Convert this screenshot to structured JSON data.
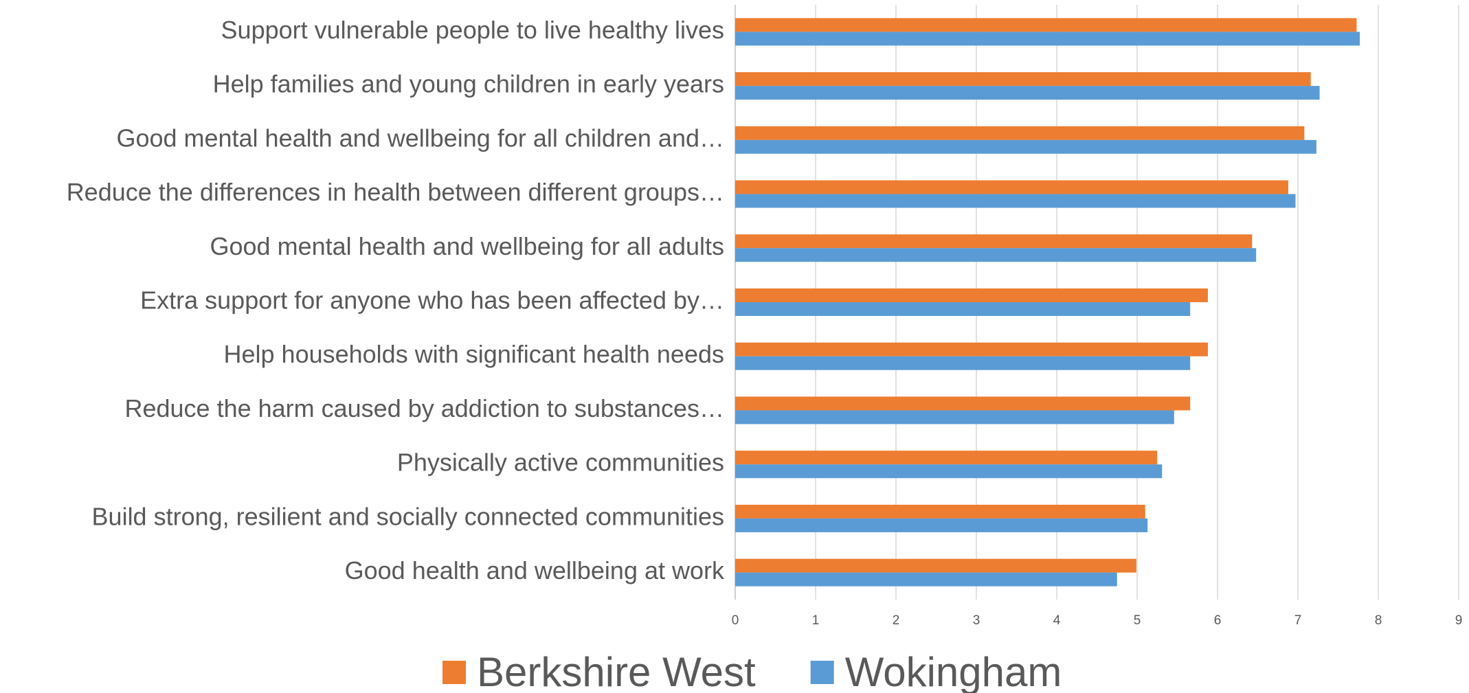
{
  "chart_data": {
    "type": "bar",
    "orientation": "horizontal",
    "categories": [
      "Support vulnerable people to live healthy lives",
      "Help families and young children in early years",
      "Good mental health and wellbeing for all children and…",
      "Reduce the differences in health between different groups…",
      "Good mental health and wellbeing for all adults",
      "Extra support for anyone who has been affected by…",
      "Help households with significant health needs",
      "Reduce the harm caused by addiction to substances…",
      "Physically active communities",
      "Build strong, resilient and socially connected communities",
      "Good health and wellbeing at work"
    ],
    "series": [
      {
        "name": "Berkshire West",
        "color": "#ed7d31",
        "values": [
          7.73,
          7.16,
          7.08,
          6.88,
          6.43,
          5.88,
          5.88,
          5.66,
          5.25,
          5.1,
          4.99
        ]
      },
      {
        "name": "Wokingham",
        "color": "#5b9bd5",
        "values": [
          7.77,
          7.27,
          7.23,
          6.97,
          6.48,
          5.66,
          5.66,
          5.46,
          5.31,
          5.13,
          4.75
        ]
      }
    ],
    "xlim": [
      0,
      9
    ],
    "xticks": [
      0,
      1,
      2,
      3,
      4,
      5,
      6,
      7,
      8,
      9
    ],
    "grid": true,
    "legend": "bottom"
  }
}
